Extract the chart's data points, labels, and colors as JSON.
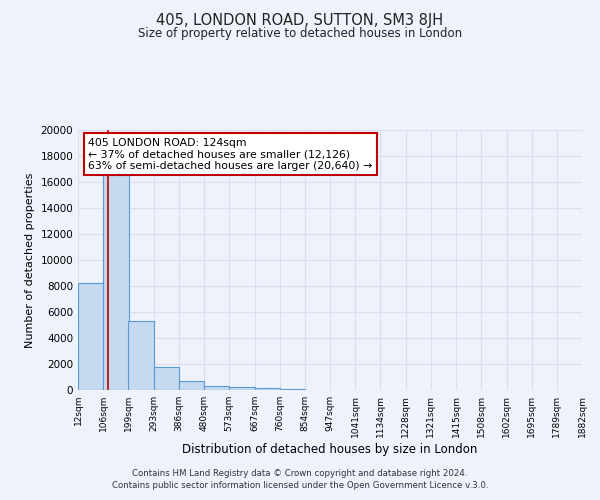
{
  "title": "405, LONDON ROAD, SUTTON, SM3 8JH",
  "subtitle": "Size of property relative to detached houses in London",
  "xlabel": "Distribution of detached houses by size in London",
  "ylabel": "Number of detached properties",
  "bar_values": [
    8200,
    16600,
    5300,
    1750,
    700,
    300,
    200,
    150,
    100
  ],
  "bar_left_edges": [
    12,
    106,
    199,
    293,
    386,
    480,
    573,
    667,
    760,
    854
  ],
  "bin_width": 94,
  "xlim": [
    12,
    1882
  ],
  "ylim": [
    0,
    20000
  ],
  "yticks": [
    0,
    2000,
    4000,
    6000,
    8000,
    10000,
    12000,
    14000,
    16000,
    18000,
    20000
  ],
  "xtick_positions": [
    12,
    106,
    199,
    293,
    386,
    480,
    573,
    667,
    760,
    854,
    947,
    1041,
    1134,
    1228,
    1321,
    1415,
    1508,
    1602,
    1695,
    1789,
    1882
  ],
  "xtick_labels": [
    "12sqm",
    "106sqm",
    "199sqm",
    "293sqm",
    "386sqm",
    "480sqm",
    "573sqm",
    "667sqm",
    "760sqm",
    "854sqm",
    "947sqm",
    "1041sqm",
    "1134sqm",
    "1228sqm",
    "1321sqm",
    "1415sqm",
    "1508sqm",
    "1602sqm",
    "1695sqm",
    "1789sqm",
    "1882sqm"
  ],
  "bar_color": "#c5d9f0",
  "bar_edge_color": "#5b9bd5",
  "red_line_x": 124,
  "annotation_title": "405 LONDON ROAD: 124sqm",
  "annotation_line1": "← 37% of detached houses are smaller (12,126)",
  "annotation_line2": "63% of semi-detached houses are larger (20,640) →",
  "annotation_box_color": "#ffffff",
  "annotation_box_edge": "#c00000",
  "footer_line1": "Contains HM Land Registry data © Crown copyright and database right 2024.",
  "footer_line2": "Contains public sector information licensed under the Open Government Licence v.3.0.",
  "background_color": "#eef2fb",
  "grid_color": "#d8dff0",
  "figsize": [
    6.0,
    5.0
  ],
  "dpi": 100
}
